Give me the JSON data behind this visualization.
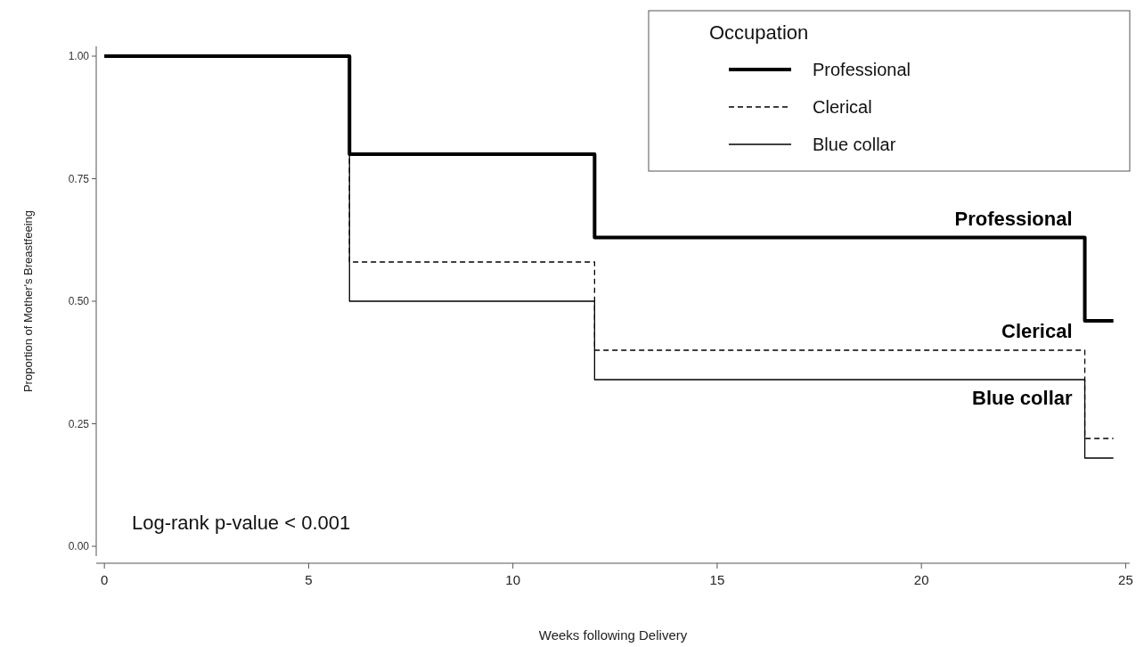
{
  "chart_data": {
    "type": "step",
    "xlabel": "Weeks following Delivery",
    "ylabel": "Proportion of Mother's Breastfeeing",
    "legend_title": "Occupation",
    "legend": "top right",
    "grid": false,
    "x": [
      0,
      6,
      12,
      24,
      24.7
    ],
    "xlim": [
      -0.2,
      25.1
    ],
    "xticks": [
      0,
      5,
      10,
      15,
      20,
      25
    ],
    "ylim": [
      -0.02,
      1.02
    ],
    "yticks": [
      {
        "value": 0,
        "label": "0.00"
      },
      {
        "value": 0.25,
        "label": "0.25"
      },
      {
        "value": 0.5,
        "label": "0.50"
      },
      {
        "value": 0.75,
        "label": "0.75"
      },
      {
        "value": 1,
        "label": "1.00"
      }
    ],
    "series": [
      {
        "name": "Professional",
        "color": "#000000",
        "line_style": "solid",
        "values": [
          1,
          0.8,
          0.63,
          0.46,
          0.46
        ]
      },
      {
        "name": "Clerical",
        "color": "#000000",
        "line_style": "dashed",
        "values": [
          1,
          0.58,
          0.4,
          0.22,
          0.22
        ]
      },
      {
        "name": "Blue collar",
        "color": "#000000",
        "line_style": "solid",
        "values": [
          1,
          0.5,
          0.34,
          0.18,
          0.18
        ]
      }
    ],
    "annotations": [
      "Log-rank p-value < 0.001"
    ]
  }
}
